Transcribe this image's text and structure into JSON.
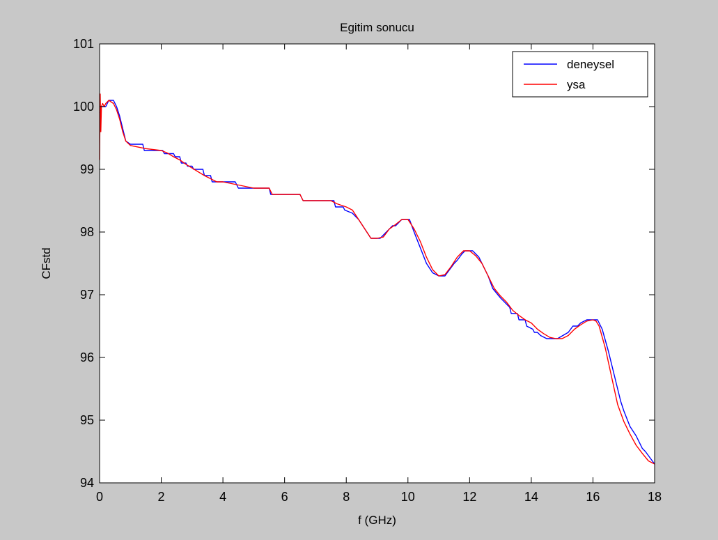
{
  "figure": {
    "background": "#c8c8c8",
    "axes_background": "#ffffff"
  },
  "chart_data": {
    "type": "line",
    "title": "Egitim sonucu",
    "xlabel": "f (GHz)",
    "ylabel": "CFstd",
    "xlim": [
      0,
      18
    ],
    "ylim": [
      94,
      101
    ],
    "xticks": [
      0,
      2,
      4,
      6,
      8,
      10,
      12,
      14,
      16,
      18
    ],
    "yticks": [
      94,
      95,
      96,
      97,
      98,
      99,
      100,
      101
    ],
    "grid": false,
    "legend_position": "top-right",
    "series": [
      {
        "name": "deneysel",
        "color": "#0000ff",
        "x": [
          0,
          0.05,
          0.15,
          0.2,
          0.25,
          0.3,
          0.45,
          0.55,
          0.65,
          0.75,
          0.85,
          1.0,
          1.4,
          1.45,
          2.05,
          2.1,
          2.4,
          2.45,
          2.6,
          2.65,
          2.8,
          2.85,
          3.0,
          3.05,
          3.35,
          3.4,
          3.6,
          3.65,
          4.4,
          4.5,
          5.5,
          5.55,
          6.5,
          6.6,
          7.6,
          7.65,
          7.9,
          7.95,
          8.2,
          8.4,
          8.6,
          8.8,
          9.1,
          9.3,
          9.5,
          9.6,
          9.8,
          9.85,
          10.05,
          10.2,
          10.4,
          10.6,
          10.8,
          11.0,
          11.2,
          11.35,
          11.5,
          11.6,
          11.75,
          11.85,
          12.0,
          12.1,
          12.3,
          12.35,
          12.6,
          12.75,
          13.0,
          13.1,
          13.3,
          13.35,
          13.55,
          13.6,
          13.8,
          13.85,
          14.05,
          14.1,
          14.2,
          14.3,
          14.5,
          14.6,
          14.8,
          14.85,
          15.2,
          15.35,
          15.5,
          15.6,
          15.8,
          15.85,
          16.15,
          16.3,
          16.5,
          16.7,
          16.9,
          17.0,
          17.2,
          17.4,
          17.6,
          17.7,
          17.85,
          18.0
        ],
        "y": [
          99.9,
          100.0,
          100.0,
          100.0,
          100.05,
          100.1,
          100.1,
          100.0,
          99.85,
          99.65,
          99.45,
          99.4,
          99.4,
          99.3,
          99.3,
          99.25,
          99.25,
          99.2,
          99.2,
          99.1,
          99.1,
          99.05,
          99.05,
          99.0,
          99.0,
          98.9,
          98.9,
          98.8,
          98.8,
          98.7,
          98.7,
          98.6,
          98.6,
          98.5,
          98.5,
          98.4,
          98.4,
          98.35,
          98.3,
          98.2,
          98.05,
          97.9,
          97.9,
          98.0,
          98.1,
          98.1,
          98.2,
          98.2,
          98.2,
          98.0,
          97.75,
          97.5,
          97.35,
          97.3,
          97.3,
          97.4,
          97.5,
          97.55,
          97.65,
          97.7,
          97.7,
          97.7,
          97.6,
          97.55,
          97.3,
          97.1,
          96.95,
          96.9,
          96.8,
          96.7,
          96.7,
          96.6,
          96.6,
          96.5,
          96.45,
          96.4,
          96.4,
          96.35,
          96.3,
          96.3,
          96.3,
          96.3,
          96.4,
          96.5,
          96.5,
          96.55,
          96.6,
          96.6,
          96.6,
          96.45,
          96.1,
          95.7,
          95.3,
          95.15,
          94.9,
          94.75,
          94.55,
          94.5,
          94.4,
          94.3
        ]
      },
      {
        "name": "ysa",
        "color": "#ff0000",
        "x": [
          0,
          0.02,
          0.04,
          0.06,
          0.1,
          0.15,
          0.2,
          0.3,
          0.45,
          0.55,
          0.65,
          0.75,
          0.85,
          1.0,
          1.5,
          2.0,
          2.2,
          2.4,
          2.6,
          2.8,
          3.0,
          3.2,
          3.4,
          3.6,
          3.8,
          4.0,
          4.5,
          5.0,
          5.5,
          5.6,
          6.5,
          6.6,
          7.5,
          7.7,
          8.0,
          8.2,
          8.4,
          8.6,
          8.8,
          9.0,
          9.2,
          9.4,
          9.6,
          9.8,
          10.0,
          10.2,
          10.4,
          10.6,
          10.8,
          11.0,
          11.2,
          11.4,
          11.6,
          11.8,
          12.0,
          12.2,
          12.4,
          12.6,
          12.8,
          13.0,
          13.2,
          13.4,
          13.6,
          13.8,
          14.0,
          14.2,
          14.4,
          14.6,
          14.8,
          15.0,
          15.2,
          15.4,
          15.6,
          15.8,
          16.0,
          16.1,
          16.2,
          16.4,
          16.6,
          16.8,
          17.0,
          17.2,
          17.4,
          17.6,
          17.8,
          18.0
        ],
        "y": [
          99.15,
          100.2,
          99.6,
          100.0,
          100.05,
          100.0,
          100.05,
          100.1,
          100.05,
          99.95,
          99.8,
          99.6,
          99.45,
          99.38,
          99.33,
          99.3,
          99.26,
          99.2,
          99.15,
          99.08,
          99.02,
          98.96,
          98.9,
          98.85,
          98.8,
          98.8,
          98.75,
          98.7,
          98.7,
          98.6,
          98.6,
          98.5,
          98.5,
          98.45,
          98.4,
          98.35,
          98.2,
          98.05,
          97.9,
          97.9,
          97.92,
          98.05,
          98.12,
          98.2,
          98.2,
          98.05,
          97.85,
          97.6,
          97.4,
          97.3,
          97.32,
          97.45,
          97.6,
          97.7,
          97.7,
          97.62,
          97.5,
          97.3,
          97.1,
          96.98,
          96.88,
          96.75,
          96.67,
          96.6,
          96.55,
          96.45,
          96.38,
          96.32,
          96.3,
          96.3,
          96.35,
          96.45,
          96.52,
          96.58,
          96.6,
          96.58,
          96.5,
          96.15,
          95.7,
          95.25,
          94.98,
          94.78,
          94.6,
          94.47,
          94.35,
          94.3
        ]
      }
    ]
  }
}
